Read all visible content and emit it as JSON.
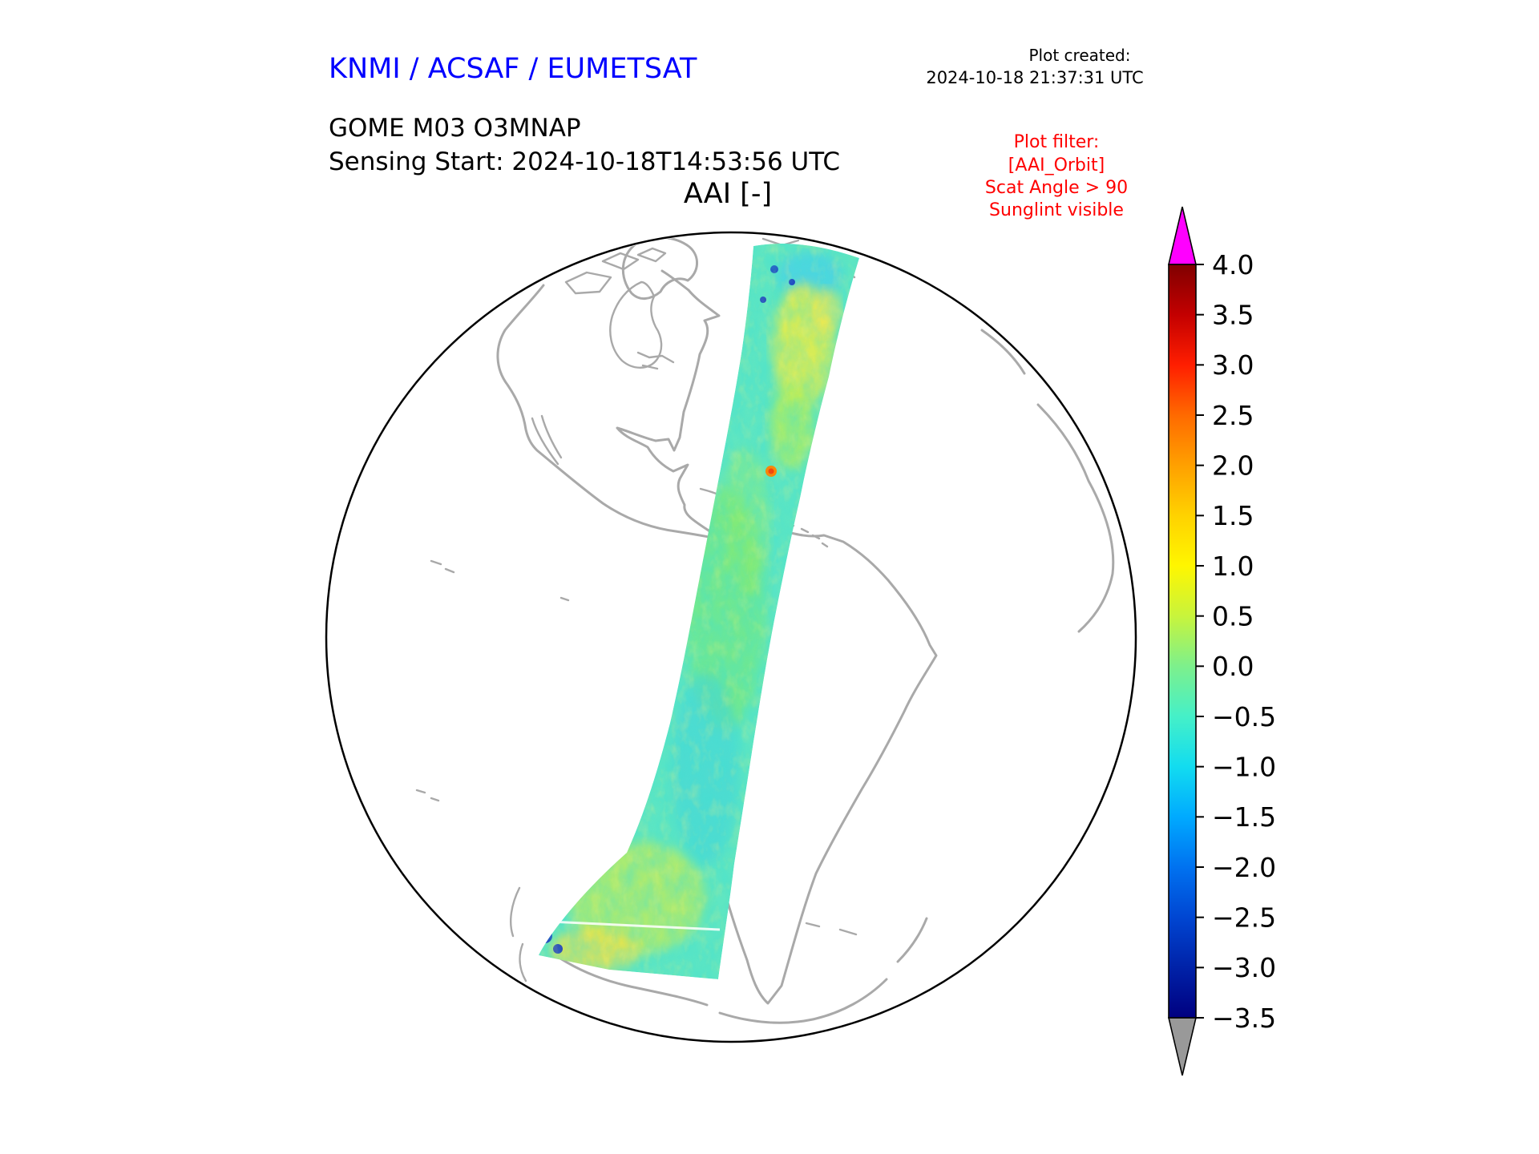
{
  "header": {
    "agency": "KNMI / ACSAF / EUMETSAT",
    "created_label": "Plot created:",
    "created_value": "2024-10-18 21:37:31 UTC",
    "product": "GOME M03 O3MNAP",
    "sensing": "Sensing Start: 2024-10-18T14:53:56 UTC",
    "plot_title": "AAI [-]",
    "filter_lines": [
      "Plot filter:",
      "[AAI_Orbit]",
      "Scat Angle > 90",
      "Sunglint visible"
    ]
  },
  "colors": {
    "title_blue": "#0000ff",
    "filter_red": "#ff0000",
    "coastline_gray": "#a9a9a9",
    "globe_outline": "#000000",
    "background": "#ffffff",
    "swath_base": "#5fe6c2"
  },
  "chart_data": {
    "type": "heatmap",
    "title": "AAI [-]",
    "product": "GOME M03 O3MNAP",
    "sensing_start": "2024-10-18T14:53:56 UTC",
    "plot_created": "2024-10-18 21:37:31 UTC",
    "projection": "orthographic globe centered on the Americas",
    "series_note": "Single satellite orbit swath of Absorbing Aerosol Index values running north-to-south from the Arctic across Central and South America toward Antarctica; values mostly between -1.0 and +1.0 (cyan to green) with scattered yellow patches near +1 and a few orange/dark-blue speckles",
    "filter_applied": [
      "[AAI_Orbit]",
      "Scat Angle > 90",
      "Sunglint visible"
    ],
    "colorbar": {
      "label": "AAI [-]",
      "vmin": -3.5,
      "vmax": 4.0,
      "over_color": "#ff00ff",
      "under_color": "#999999",
      "ticks": [
        {
          "value": 4.0,
          "label": "4.0"
        },
        {
          "value": 3.5,
          "label": "3.5"
        },
        {
          "value": 3.0,
          "label": "3.0"
        },
        {
          "value": 2.5,
          "label": "2.5"
        },
        {
          "value": 2.0,
          "label": "2.0"
        },
        {
          "value": 1.5,
          "label": "1.5"
        },
        {
          "value": 1.0,
          "label": "1.0"
        },
        {
          "value": 0.5,
          "label": "0.5"
        },
        {
          "value": 0.0,
          "label": "0.0"
        },
        {
          "value": -0.5,
          "label": "−0.5"
        },
        {
          "value": -1.0,
          "label": "−1.0"
        },
        {
          "value": -1.5,
          "label": "−1.5"
        },
        {
          "value": -2.0,
          "label": "−2.0"
        },
        {
          "value": -2.5,
          "label": "−2.5"
        },
        {
          "value": -3.0,
          "label": "−3.0"
        },
        {
          "value": -3.5,
          "label": "−3.5"
        }
      ],
      "gradient": [
        {
          "value": 4.0,
          "color": "#800000"
        },
        {
          "value": 3.5,
          "color": "#c30000"
        },
        {
          "value": 3.0,
          "color": "#ff1e00"
        },
        {
          "value": 2.5,
          "color": "#ff6a00"
        },
        {
          "value": 2.0,
          "color": "#ffa000"
        },
        {
          "value": 1.5,
          "color": "#ffd200"
        },
        {
          "value": 1.0,
          "color": "#fff600"
        },
        {
          "value": 0.5,
          "color": "#c8f43c"
        },
        {
          "value": 0.0,
          "color": "#7df08c"
        },
        {
          "value": -0.5,
          "color": "#45f0c8"
        },
        {
          "value": -1.0,
          "color": "#12dcf0"
        },
        {
          "value": -1.5,
          "color": "#00aaff"
        },
        {
          "value": -2.0,
          "color": "#0072f0"
        },
        {
          "value": -2.5,
          "color": "#0046d2"
        },
        {
          "value": -3.0,
          "color": "#0022a8"
        },
        {
          "value": -3.5,
          "color": "#000080"
        }
      ]
    }
  }
}
